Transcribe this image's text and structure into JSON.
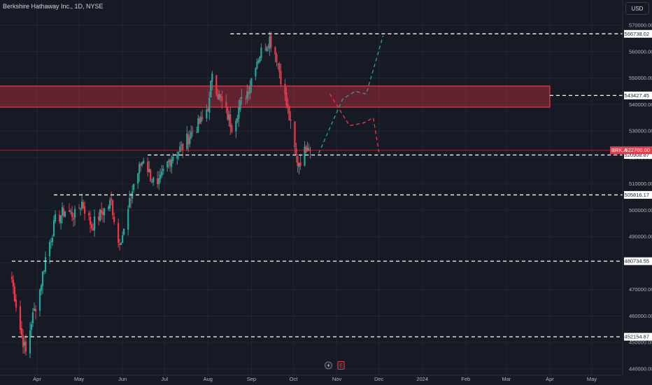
{
  "header": {
    "symbol_title": "Berkshire Hathaway Inc., 1D, NYSE",
    "currency": "USD"
  },
  "chart_data": {
    "type": "candlestick",
    "title": "Berkshire Hathaway Inc., 1D, NYSE",
    "ylim": [
      439000,
      574000
    ],
    "y_ticks": [
      440000,
      450000,
      460000,
      470000,
      480000,
      490000,
      500000,
      510000,
      520000,
      530000,
      540000,
      550000,
      560000,
      570000
    ],
    "y_tick_labels": [
      "440000.00",
      "450000.00",
      "460000.00",
      "470000.00",
      "480000.00",
      "490000.00",
      "500000.00",
      "510000.00",
      "520000.00",
      "530000.00",
      "540000.00",
      "550000.00",
      "560000.00",
      "570000.00"
    ],
    "x_labels": [
      "Apr",
      "May",
      "Jun",
      "Jul",
      "Aug",
      "Sep",
      "Oct",
      "Nov",
      "Dec",
      "2024",
      "Feb",
      "Mar",
      "Apr",
      "May"
    ],
    "x_label_dates": [
      "2023-04-01",
      "2023-05-01",
      "2023-06-01",
      "2023-07-01",
      "2023-08-01",
      "2023-09-01",
      "2023-10-01",
      "2023-11-01",
      "2023-12-01",
      "2024-01-01",
      "2024-02-01",
      "2024-03-01",
      "2024-04-01",
      "2024-05-01"
    ],
    "x_range": [
      "2023-03-14",
      "2024-05-22"
    ],
    "price_path": [
      [
        "2023-03-14",
        474000
      ],
      [
        "2023-03-20",
        455000
      ],
      [
        "2023-03-24",
        446000
      ],
      [
        "2023-03-28",
        458000
      ],
      [
        "2023-04-03",
        470000
      ],
      [
        "2023-04-07",
        482000
      ],
      [
        "2023-04-14",
        496000
      ],
      [
        "2023-04-21",
        500000
      ],
      [
        "2023-04-28",
        498000
      ],
      [
        "2023-05-03",
        503000
      ],
      [
        "2023-05-10",
        494000
      ],
      [
        "2023-05-17",
        499000
      ],
      [
        "2023-05-24",
        503000
      ],
      [
        "2023-05-29",
        488000
      ],
      [
        "2023-06-02",
        492000
      ],
      [
        "2023-06-09",
        510000
      ],
      [
        "2023-06-16",
        520000
      ],
      [
        "2023-06-21",
        513000
      ],
      [
        "2023-06-26",
        508000
      ],
      [
        "2023-07-01",
        516000
      ],
      [
        "2023-07-07",
        521000
      ],
      [
        "2023-07-14",
        524000
      ],
      [
        "2023-07-21",
        530000
      ],
      [
        "2023-07-28",
        534000
      ],
      [
        "2023-08-02",
        541000
      ],
      [
        "2023-08-04",
        553000
      ],
      [
        "2023-08-08",
        544000
      ],
      [
        "2023-08-14",
        537000
      ],
      [
        "2023-08-18",
        532000
      ],
      [
        "2023-08-24",
        540000
      ],
      [
        "2023-08-30",
        546000
      ],
      [
        "2023-09-04",
        556000
      ],
      [
        "2023-09-10",
        562000
      ],
      [
        "2023-09-14",
        565000
      ],
      [
        "2023-09-19",
        558000
      ],
      [
        "2023-09-24",
        545000
      ],
      [
        "2023-09-28",
        535000
      ],
      [
        "2023-10-01",
        525000
      ],
      [
        "2023-10-04",
        518000
      ],
      [
        "2023-10-08",
        520000
      ],
      [
        "2023-10-11",
        526000
      ],
      [
        "2023-10-13",
        522700
      ]
    ],
    "last_price": {
      "symbol": "BRK.A",
      "value": 522700,
      "label": "522700.00",
      "color": "#f23645"
    },
    "horizontal_levels": [
      {
        "value": 566738.02,
        "label": "566738.02",
        "from": "2023-08-17"
      },
      {
        "value": 543427.45,
        "label": "543427.45",
        "from": "2024-04-01"
      },
      {
        "value": 520908.87,
        "label": "520908.87",
        "from": "2023-06-19"
      },
      {
        "value": 505816.17,
        "label": "505816.17",
        "from": "2023-04-13"
      },
      {
        "value": 480734.55,
        "label": "480734.55",
        "from": "2023-03-14"
      },
      {
        "value": 452154.87,
        "label": "452154.87",
        "from": "2023-03-14"
      }
    ],
    "zone": {
      "top": 547000,
      "bottom": 539000,
      "from": "2023-03-14",
      "to": "2024-04-01",
      "color": "#f23645"
    },
    "projection_bullish": {
      "color": "#26a69a",
      "points": [
        [
          "2023-10-19",
          521500
        ],
        [
          "2023-11-05",
          542000
        ],
        [
          "2023-11-14",
          545000
        ],
        [
          "2023-11-22",
          544000
        ],
        [
          "2023-12-04",
          566000
        ]
      ]
    },
    "projection_bearish": {
      "color": "#f23645",
      "points": [
        [
          "2023-10-27",
          544000
        ],
        [
          "2023-11-10",
          532000
        ],
        [
          "2023-11-20",
          533000
        ],
        [
          "2023-11-27",
          535000
        ],
        [
          "2023-12-01",
          522000
        ]
      ]
    },
    "events": [
      {
        "icon": "lightning-icon",
        "date": "2023-10-26"
      },
      {
        "icon": "earnings-icon",
        "letter": "E",
        "date": "2023-11-04"
      }
    ],
    "colors": {
      "up": "#26a69a",
      "down": "#f23645",
      "background": "#161a25",
      "grid": "#232632",
      "levels": "#ffffff"
    }
  }
}
